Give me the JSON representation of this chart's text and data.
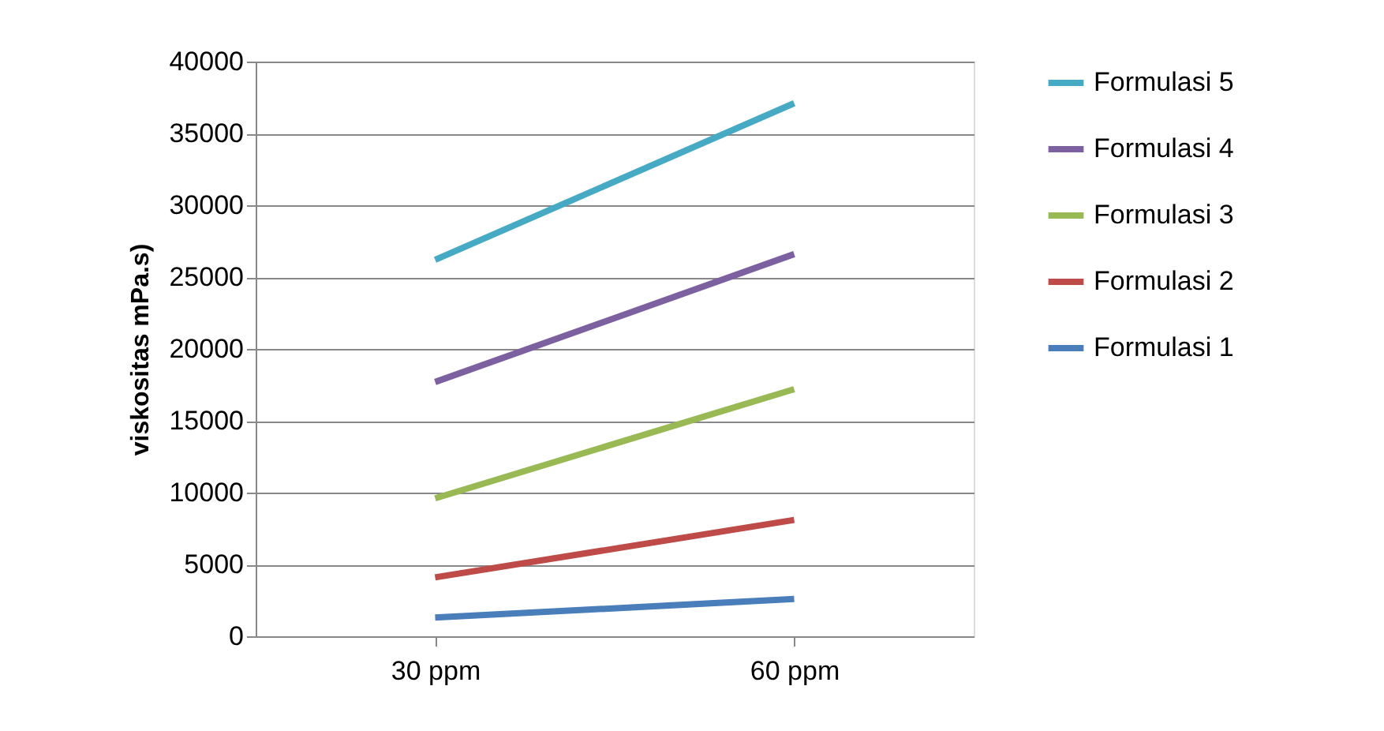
{
  "chart_data": {
    "type": "line",
    "ylabel": "viskositas mPa.s)",
    "categories": [
      "30 ppm",
      "60 ppm"
    ],
    "series": [
      {
        "name": "Formulasi 1",
        "color": "#4a7ebb",
        "values": [
          1300,
          2600
        ]
      },
      {
        "name": "Formulasi 2",
        "color": "#be4b48",
        "values": [
          4100,
          8100
        ]
      },
      {
        "name": "Formulasi 3",
        "color": "#98b954",
        "values": [
          9600,
          17200
        ]
      },
      {
        "name": "Formulasi 4",
        "color": "#7d60a0",
        "values": [
          17700,
          26600
        ]
      },
      {
        "name": "Formulasi 5",
        "color": "#46aac5",
        "values": [
          26200,
          37100
        ]
      }
    ],
    "ylim": [
      0,
      40000
    ],
    "yticks": [
      0,
      5000,
      10000,
      15000,
      20000,
      25000,
      30000,
      35000,
      40000
    ],
    "grid": "y",
    "legend": "right",
    "marker": "none",
    "line_style": "solid"
  }
}
